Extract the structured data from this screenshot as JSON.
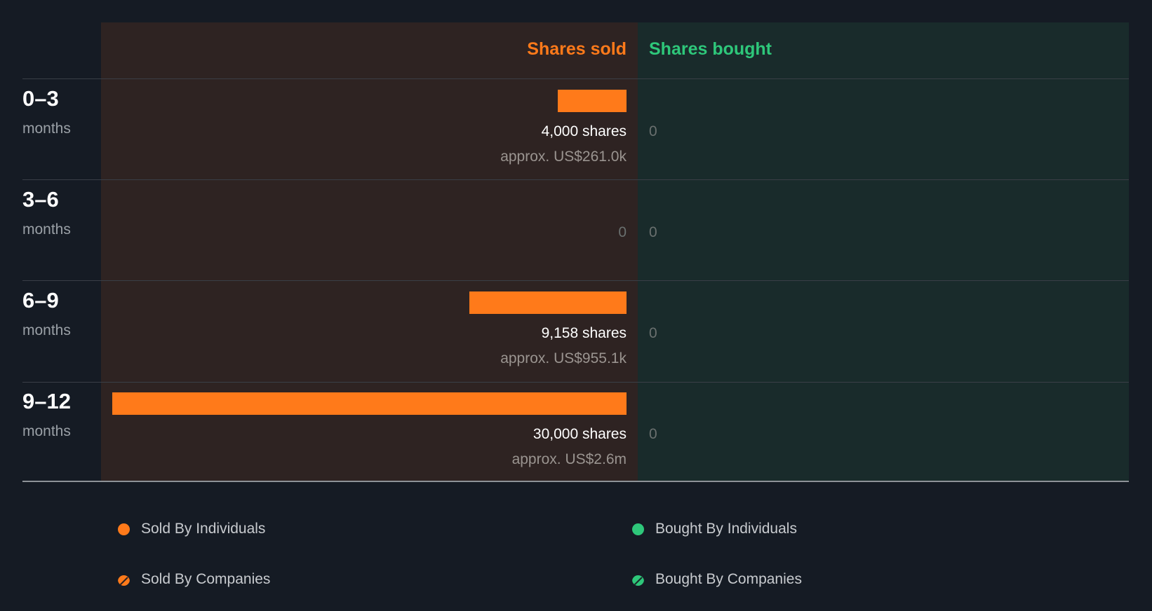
{
  "colors": {
    "sold": "#ff7a1a",
    "bought": "#2ec77a",
    "zero": "#6a706f"
  },
  "header": {
    "sold_label": "Shares sold",
    "bought_label": "Shares bought"
  },
  "chart_data": {
    "type": "bar",
    "title": "",
    "categories": [
      "0–3 months",
      "3–6 months",
      "6–9 months",
      "9–12 months"
    ],
    "series": [
      {
        "name": "Shares sold",
        "values": [
          4000,
          0,
          9158,
          30000
        ]
      },
      {
        "name": "Shares bought",
        "values": [
          0,
          0,
          0,
          0
        ]
      }
    ],
    "xlim": [
      0,
      30000
    ]
  },
  "rows": [
    {
      "range": "0–3",
      "unit": "months",
      "sold_shares": 4000,
      "sold_text": "4,000 shares",
      "sold_value": "approx. US$261.0k",
      "sold_zero": "",
      "bought_text": "0"
    },
    {
      "range": "3–6",
      "unit": "months",
      "sold_shares": 0,
      "sold_text": "",
      "sold_value": "",
      "sold_zero": "0",
      "bought_text": "0"
    },
    {
      "range": "6–9",
      "unit": "months",
      "sold_shares": 9158,
      "sold_text": "9,158 shares",
      "sold_value": "approx. US$955.1k",
      "sold_zero": "",
      "bought_text": "0"
    },
    {
      "range": "9–12",
      "unit": "months",
      "sold_shares": 30000,
      "sold_text": "30,000 shares",
      "sold_value": "approx. US$2.6m",
      "sold_zero": "",
      "bought_text": "0"
    }
  ],
  "legend": {
    "sold_individuals": "Sold By Individuals",
    "bought_individuals": "Bought By Individuals",
    "sold_companies": "Sold By Companies",
    "bought_companies": "Bought By Companies"
  }
}
